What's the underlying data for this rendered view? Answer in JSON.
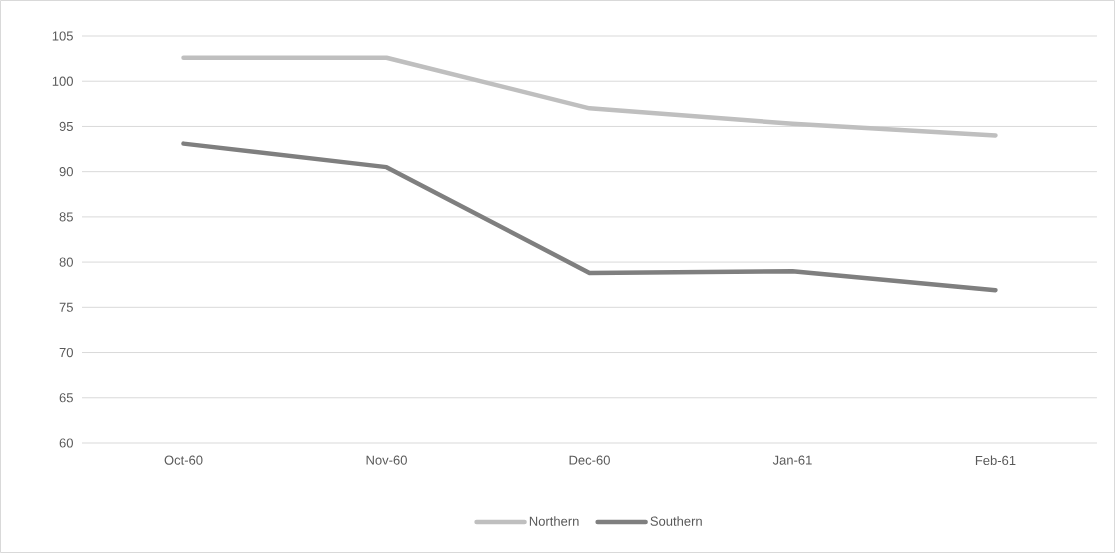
{
  "chart_data": {
    "type": "line",
    "categories": [
      "Oct-60",
      "Nov-60",
      "Dec-60",
      "Jan-61",
      "Feb-61"
    ],
    "series": [
      {
        "name": "Northern",
        "color": "#bfbfbf",
        "values": [
          102.6,
          102.6,
          97.0,
          95.3,
          94.0
        ]
      },
      {
        "name": "Southern",
        "color": "#7f7f7f",
        "values": [
          93.1,
          90.5,
          78.8,
          79.0,
          76.9
        ]
      }
    ],
    "ylim": [
      60,
      105
    ],
    "yticks": [
      60,
      65,
      70,
      75,
      80,
      85,
      90,
      95,
      100,
      105
    ],
    "grid": "y",
    "legend": "bottom",
    "marker": "none"
  }
}
